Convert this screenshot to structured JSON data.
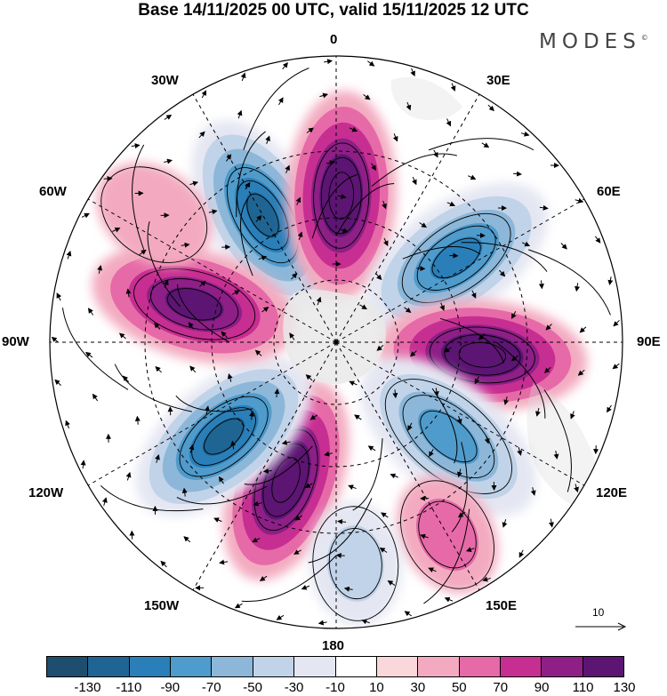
{
  "title": "Base 14/11/2025 00 UTC, valid 15/11/2025 12 UTC",
  "brand": "MODES",
  "brand_mark": "©",
  "longitude_labels": {
    "lon_0": "0",
    "lon_30e": "30E",
    "lon_60e": "60E",
    "lon_90e": "90E",
    "lon_120e": "120E",
    "lon_150e": "150E",
    "lon_180": "180",
    "lon_150w": "150W",
    "lon_120w": "120W",
    "lon_90w": "90W",
    "lon_60w": "60W",
    "lon_30w": "30W"
  },
  "reference_vector": {
    "label": "10"
  },
  "colorbar": {
    "ticks": [
      "-130",
      "-110",
      "-90",
      "-70",
      "-50",
      "-30",
      "-10",
      "10",
      "30",
      "50",
      "70",
      "90",
      "110",
      "130"
    ],
    "colors": [
      "#1d4e6f",
      "#1f6594",
      "#2a7fb8",
      "#4f9bcb",
      "#8cb7d9",
      "#c1d3e8",
      "#e4e6f2",
      "#ffffff",
      "#f9d7da",
      "#f3aac0",
      "#e66aa8",
      "#c72e92",
      "#8d1f86",
      "#5c1573"
    ]
  },
  "anomaly_lobes": [
    {
      "name": "lobe-30w-negative",
      "bearing_deg": -30,
      "value": -130
    },
    {
      "name": "lobe-0-positive",
      "bearing_deg": 2,
      "value": 130
    },
    {
      "name": "lobe-45e-negative",
      "bearing_deg": 55,
      "value": -110
    },
    {
      "name": "lobe-90e-positive",
      "bearing_deg": 95,
      "value": 130
    },
    {
      "name": "lobe-120e-negative",
      "bearing_deg": 130,
      "value": -90
    },
    {
      "name": "lobe-165w-positive",
      "bearing_deg": -160,
      "value": 130
    },
    {
      "name": "lobe-120w-negative",
      "bearing_deg": -130,
      "value": -130
    },
    {
      "name": "lobe-75w-positive",
      "bearing_deg": -75,
      "value": 110
    },
    {
      "name": "lobe-55w-weak-positive",
      "bearing_deg": -55,
      "value": 30
    },
    {
      "name": "lobe-150e-weak-positive",
      "bearing_deg": 150,
      "value": 50
    },
    {
      "name": "lobe-175e-weak-negative",
      "bearing_deg": 175,
      "value": -50
    }
  ]
}
